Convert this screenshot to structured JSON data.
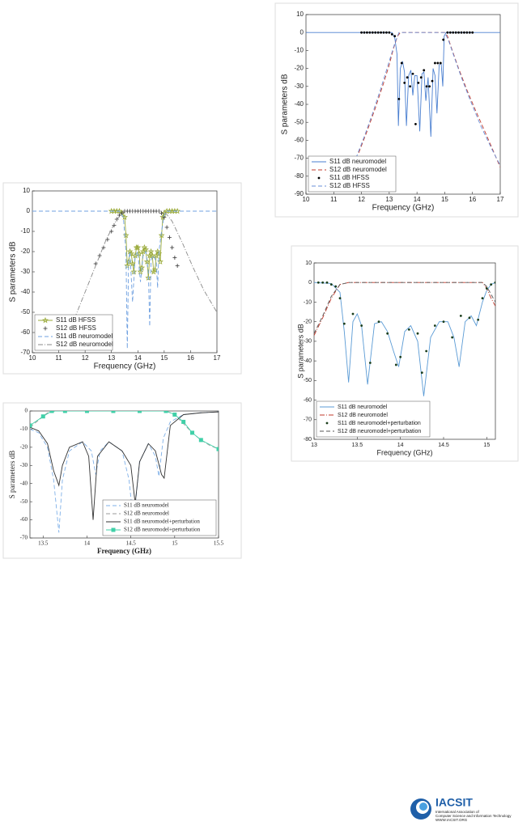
{
  "chart_data": [
    {
      "type": "line",
      "xlabel": "Frequency (GHz)",
      "ylabel": "S parameters dB",
      "xlim": [
        10,
        17
      ],
      "ylim": [
        -90,
        10
      ],
      "xticks": [
        10,
        11,
        12,
        13,
        14,
        15,
        16,
        17
      ],
      "yticks": [
        10,
        0,
        -10,
        -20,
        -30,
        -40,
        -50,
        -60,
        -70,
        -80,
        -90
      ],
      "legend": "lower left",
      "series": [
        {
          "name": "S11 dB neuromodel",
          "color": "#4a7fd0",
          "linestyle": "solid",
          "x": [
            10,
            13.1,
            13.2,
            13.28,
            13.33,
            13.4,
            13.48,
            13.55,
            13.62,
            13.7,
            13.78,
            13.85,
            13.92,
            14.0,
            14.1,
            14.18,
            14.25,
            14.32,
            14.4,
            14.5,
            14.58,
            14.65,
            14.72,
            14.8,
            14.87,
            14.93,
            14.98,
            15.05,
            15.15,
            17
          ],
          "values": [
            0,
            0,
            -3,
            -12,
            -52,
            -20,
            -16,
            -22,
            -52,
            -24,
            -21,
            -35,
            -24,
            -24,
            -55,
            -23,
            -22,
            -38,
            -25,
            -58,
            -20,
            -24,
            -45,
            -18,
            -17,
            -30,
            -2,
            0,
            0,
            0
          ]
        },
        {
          "name": "S12 dB neuromodel",
          "color": "#c0392b",
          "linestyle": "dashed",
          "x": [
            11.9,
            12.2,
            12.5,
            12.8,
            13.0,
            13.15,
            13.3,
            13.4,
            15.0,
            15.1,
            15.25,
            15.5,
            15.8,
            16.1,
            16.5,
            17
          ],
          "values": [
            -67,
            -55,
            -42,
            -28,
            -18,
            -9,
            -2,
            0,
            0,
            -2,
            -9,
            -20,
            -32,
            -43,
            -57,
            -75
          ]
        },
        {
          "name": "S11 dB HFSS",
          "color": "#000000",
          "linestyle": "none",
          "marker": "dot",
          "x": [
            12,
            12.1,
            12.2,
            12.3,
            12.4,
            12.5,
            12.6,
            12.7,
            12.8,
            12.9,
            13.0,
            13.1,
            13.2,
            13.35,
            13.45,
            13.55,
            13.65,
            13.75,
            13.85,
            13.95,
            14.05,
            14.15,
            14.25,
            14.35,
            14.45,
            14.55,
            14.65,
            14.75,
            14.85,
            14.95,
            15.1,
            15.2,
            15.3,
            15.4,
            15.5,
            15.6,
            15.7,
            15.8,
            15.9,
            16.0
          ],
          "values": [
            0,
            0,
            0,
            0,
            0,
            0,
            0,
            0,
            0,
            0,
            0,
            -1,
            -2,
            -37,
            -17,
            -28,
            -25,
            -30,
            -23,
            -51,
            -28,
            -25,
            -21,
            -30,
            -30,
            -27,
            -17,
            -17,
            -17,
            -4,
            0,
            0,
            0,
            0,
            0,
            0,
            0,
            0,
            0,
            0
          ]
        },
        {
          "name": "S12 dB HFSS",
          "color": "#6a8fd8",
          "linestyle": "dashed",
          "x": [
            11.8,
            12.1,
            12.4,
            12.7,
            13.0,
            13.2,
            13.35,
            15.0,
            15.15,
            15.35,
            15.6,
            15.9,
            16.3,
            16.7,
            17
          ],
          "values": [
            -70,
            -58,
            -45,
            -31,
            -16,
            -6,
            0,
            0,
            -5,
            -14,
            -25,
            -37,
            -52,
            -65,
            -74
          ]
        }
      ]
    },
    {
      "type": "line",
      "xlabel": "Frequency (GHz)",
      "ylabel": "S parameters dB",
      "xlim": [
        10,
        17
      ],
      "ylim": [
        -70,
        10
      ],
      "xticks": [
        10,
        11,
        12,
        13,
        14,
        15,
        16,
        17
      ],
      "yticks": [
        10,
        0,
        -10,
        -20,
        -30,
        -40,
        -50,
        -60,
        -70
      ],
      "legend": "lower left",
      "series": [
        {
          "name": "S11 dB HFSS",
          "color": "#9aaa3a",
          "linestyle": "solid",
          "marker": "star",
          "x": [
            13.0,
            13.1,
            13.2,
            13.3,
            13.4,
            13.5,
            13.55,
            13.6,
            13.65,
            13.7,
            13.75,
            13.8,
            13.85,
            13.9,
            13.95,
            14.0,
            14.05,
            14.1,
            14.15,
            14.2,
            14.25,
            14.3,
            14.35,
            14.4,
            14.45,
            14.5,
            14.55,
            14.6,
            14.65,
            14.7,
            14.75,
            14.8,
            14.85,
            14.9,
            14.95,
            15.0,
            15.1,
            15.2,
            15.3,
            15.4,
            15.5
          ],
          "values": [
            0,
            0,
            0,
            0,
            -1,
            -3,
            -12,
            -27,
            -25,
            -20,
            -21,
            -26,
            -30,
            -22,
            -18,
            -18,
            -21,
            -30,
            -28,
            -20,
            -18,
            -19,
            -25,
            -33,
            -22,
            -20,
            -22,
            -30,
            -29,
            -22,
            -20,
            -21,
            -25,
            -12,
            -3,
            -1,
            0,
            0,
            0,
            0,
            0
          ]
        },
        {
          "name": "S12 dB HFSS",
          "color": "#333333",
          "linestyle": "none",
          "marker": "plus",
          "x": [
            12.4,
            12.55,
            12.7,
            12.85,
            13.0,
            13.1,
            13.2,
            13.3,
            13.4,
            13.5,
            13.6,
            13.7,
            13.8,
            13.9,
            14.0,
            14.1,
            14.2,
            14.3,
            14.4,
            14.5,
            14.6,
            14.7,
            14.8,
            14.9,
            15.0,
            15.1,
            15.2,
            15.3,
            15.4,
            15.5
          ],
          "values": [
            -26,
            -22,
            -18,
            -14,
            -10,
            -7,
            -4,
            -2,
            -1,
            0,
            0,
            0,
            0,
            0,
            0,
            0,
            0,
            0,
            0,
            0,
            0,
            0,
            0,
            -1,
            -3,
            -8,
            -13,
            -18,
            -23,
            -27
          ]
        },
        {
          "name": "S11 dB neuromodel",
          "color": "#6fa0e0",
          "linestyle": "dashed",
          "x": [
            10,
            13.3,
            13.45,
            13.55,
            13.6,
            13.65,
            13.7,
            13.8,
            13.9,
            14.0,
            14.05,
            14.1,
            14.2,
            14.3,
            14.4,
            14.45,
            14.5,
            14.6,
            14.7,
            14.75,
            14.8,
            14.9,
            15.0,
            15.1,
            17
          ],
          "values": [
            0,
            0,
            -3,
            -20,
            -68,
            -25,
            -20,
            -45,
            -22,
            -20,
            -28,
            -35,
            -22,
            -20,
            -30,
            -57,
            -24,
            -22,
            -25,
            -38,
            -20,
            -10,
            -2,
            0,
            0
          ]
        },
        {
          "name": "S12 dB neuromodel",
          "color": "#888888",
          "linestyle": "dashdot",
          "x": [
            11.6,
            12.0,
            12.4,
            12.8,
            13.2,
            13.5,
            15.0,
            15.3,
            15.7,
            16.1,
            16.5,
            17
          ],
          "values": [
            -53,
            -40,
            -27,
            -14,
            -4,
            0,
            0,
            -5,
            -16,
            -28,
            -39,
            -50
          ]
        }
      ]
    },
    {
      "type": "line",
      "xlabel": "Frequency (GHz)",
      "ylabel": "S parameters dB",
      "xlim": [
        13.35,
        15.5
      ],
      "ylim": [
        -70,
        0
      ],
      "xticks": [
        13.5,
        14,
        14.5,
        15,
        15.5
      ],
      "yticks": [
        0,
        -10,
        -20,
        -30,
        -40,
        -50,
        -60,
        -70
      ],
      "legend": "lower right",
      "series": [
        {
          "name": "S11 dB neuromodel",
          "color": "#7fb0e8",
          "linestyle": "dashed",
          "x": [
            13.35,
            13.45,
            13.55,
            13.62,
            13.68,
            13.72,
            13.8,
            13.95,
            14.05,
            14.1,
            14.15,
            14.25,
            14.4,
            14.48,
            14.53,
            14.6,
            14.7,
            14.78,
            14.82,
            14.87,
            14.95,
            15.1,
            15.3,
            15.5
          ],
          "values": [
            -10,
            -12,
            -20,
            -38,
            -67,
            -38,
            -22,
            -17,
            -22,
            -35,
            -22,
            -17,
            -22,
            -38,
            -62,
            -28,
            -18,
            -25,
            -36,
            -15,
            -6,
            -2,
            -1,
            -0.5
          ]
        },
        {
          "name": "S12 dB neuromodel",
          "color": "#999999",
          "linestyle": "dashed",
          "x": [
            13.35,
            13.45,
            13.55,
            13.65,
            14.0,
            14.5,
            14.9,
            15.0,
            15.1,
            15.2,
            15.3,
            15.4,
            15.5
          ],
          "values": [
            -9,
            -5,
            -1,
            0,
            0,
            0,
            0,
            -2,
            -7,
            -12,
            -16,
            -19,
            -21
          ]
        },
        {
          "name": "S11 dB neuromodel+perturbation",
          "color": "#333333",
          "linestyle": "solid",
          "x": [
            13.35,
            13.45,
            13.55,
            13.62,
            13.68,
            13.72,
            13.8,
            13.95,
            14.02,
            14.07,
            14.12,
            14.25,
            14.4,
            14.5,
            14.55,
            14.6,
            14.7,
            14.78,
            14.85,
            14.88,
            14.95,
            15.1,
            15.3,
            15.5
          ],
          "values": [
            -9,
            -11,
            -18,
            -33,
            -41,
            -30,
            -20,
            -17,
            -25,
            -60,
            -25,
            -17,
            -22,
            -30,
            -51,
            -28,
            -18,
            -22,
            -35,
            -37,
            -8,
            -2,
            -1,
            -0.5
          ]
        },
        {
          "name": "S12 dB neuromodel+perturbation",
          "color": "#40d0a8",
          "linestyle": "solid",
          "marker": "square",
          "x": [
            13.35,
            13.5,
            13.6,
            13.75,
            14.0,
            14.3,
            14.6,
            14.9,
            15.0,
            15.1,
            15.2,
            15.3,
            15.5
          ],
          "values": [
            -8,
            -3,
            0,
            0,
            0,
            0,
            0,
            0,
            -2,
            -6,
            -12,
            -16,
            -21
          ]
        }
      ]
    },
    {
      "type": "line",
      "xlabel": "Frequency (GHz)",
      "ylabel": "S parameters dB",
      "xlim": [
        13,
        15.1
      ],
      "ylim": [
        -80,
        10
      ],
      "xticks": [
        13,
        13.5,
        14,
        14.5,
        15
      ],
      "yticks": [
        10,
        0,
        -10,
        -20,
        -30,
        -40,
        -50,
        -60,
        -70,
        -80
      ],
      "legend": "lower left",
      "series": [
        {
          "name": "S11 dB neuromodel",
          "color": "#5b9bd5",
          "linestyle": "solid",
          "x": [
            13,
            13.2,
            13.3,
            13.35,
            13.4,
            13.45,
            13.5,
            13.55,
            13.62,
            13.7,
            13.78,
            13.85,
            13.92,
            13.98,
            14.05,
            14.12,
            14.2,
            14.27,
            14.35,
            14.45,
            14.55,
            14.62,
            14.68,
            14.75,
            14.82,
            14.88,
            14.95,
            15.0,
            15.05,
            15.1
          ],
          "values": [
            0,
            -0.5,
            -5,
            -25,
            -51,
            -20,
            -16,
            -22,
            -52,
            -21,
            -20,
            -25,
            -35,
            -43,
            -25,
            -22,
            -30,
            -58,
            -28,
            -20,
            -20,
            -28,
            -43,
            -20,
            -17,
            -22,
            -10,
            -4,
            -1,
            0
          ]
        },
        {
          "name": "S12 dB neuromodel",
          "color": "#c0392b",
          "linestyle": "dashdot",
          "x": [
            13,
            13.1,
            13.2,
            13.3,
            13.4,
            14,
            14.5,
            14.95,
            15.0,
            15.05,
            15.1
          ],
          "values": [
            -27,
            -18,
            -8,
            -1,
            0,
            0,
            0,
            0,
            -3,
            -8,
            -12
          ]
        },
        {
          "name": "S11 dB neuromodel+perturbation",
          "color": "#1a3d1a",
          "linestyle": "none",
          "marker": "dot",
          "x": [
            13.05,
            13.1,
            13.15,
            13.2,
            13.25,
            13.3,
            13.35,
            13.45,
            13.55,
            13.65,
            13.75,
            13.85,
            13.95,
            14.0,
            14.1,
            14.2,
            14.25,
            14.3,
            14.4,
            14.5,
            14.6,
            14.7,
            14.8,
            14.9,
            14.95,
            15.0,
            15.05,
            15.1
          ],
          "values": [
            0,
            0,
            0,
            -1,
            -2,
            -8,
            -21,
            -16,
            -22,
            -41,
            -20,
            -26,
            -42,
            -38,
            -24,
            -26,
            -46,
            -35,
            -22,
            -20,
            -28,
            -17,
            -18,
            -19,
            -8,
            -3,
            -1,
            0
          ]
        },
        {
          "name": "S12 dB neuromodel+perturbation",
          "color": "#555555",
          "linestyle": "dashed",
          "x": [
            13,
            13.1,
            13.2,
            13.3,
            13.4,
            14,
            14.5,
            14.95,
            15.0,
            15.05,
            15.1
          ],
          "values": [
            -26,
            -17,
            -7,
            -1,
            0,
            0,
            0,
            0,
            -2,
            -6,
            -10
          ]
        }
      ]
    }
  ],
  "logo": {
    "name": "IACSIT",
    "line1": "International Association of",
    "line2": "Computer Science and Information Technology",
    "url": "WWW.IACSIT.ORG"
  }
}
